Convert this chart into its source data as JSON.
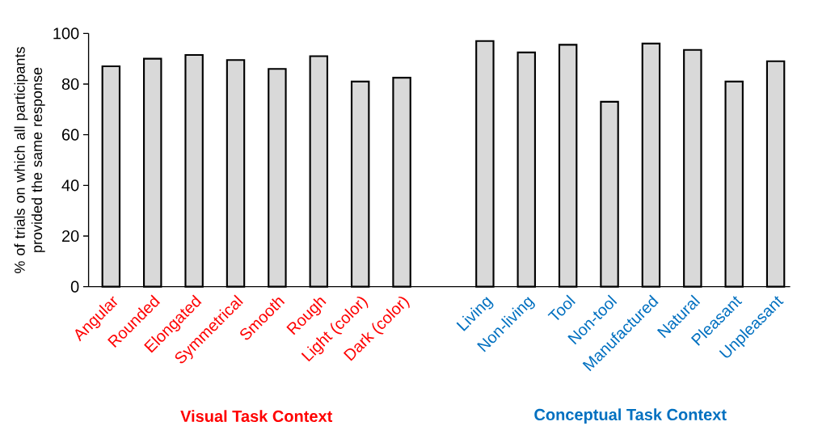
{
  "chart_data": {
    "type": "bar",
    "ylabel": "% of trials on which all participants provided the same response",
    "categories": [
      "Angular",
      "Rounded",
      "Elongated",
      "Symmetrical",
      "Smooth",
      "Rough",
      "Light (color)",
      "Dark (color)",
      null,
      "Living",
      "Non-living",
      "Tool",
      "Non-tool",
      "Manufactured",
      "Natural",
      "Pleasant",
      "Unpleasant"
    ],
    "values": [
      87,
      90,
      91.5,
      89.5,
      86,
      91,
      81,
      82.5,
      null,
      97,
      92.5,
      95.5,
      73,
      96,
      93.5,
      81,
      89
    ],
    "color": "#d9d9d9",
    "ylim": [
      0,
      100
    ],
    "yticks": [
      0,
      20,
      40,
      60,
      80,
      100
    ],
    "grid": false,
    "annotations": [
      "Visual Task Context",
      "Conceptual Task Context"
    ]
  }
}
